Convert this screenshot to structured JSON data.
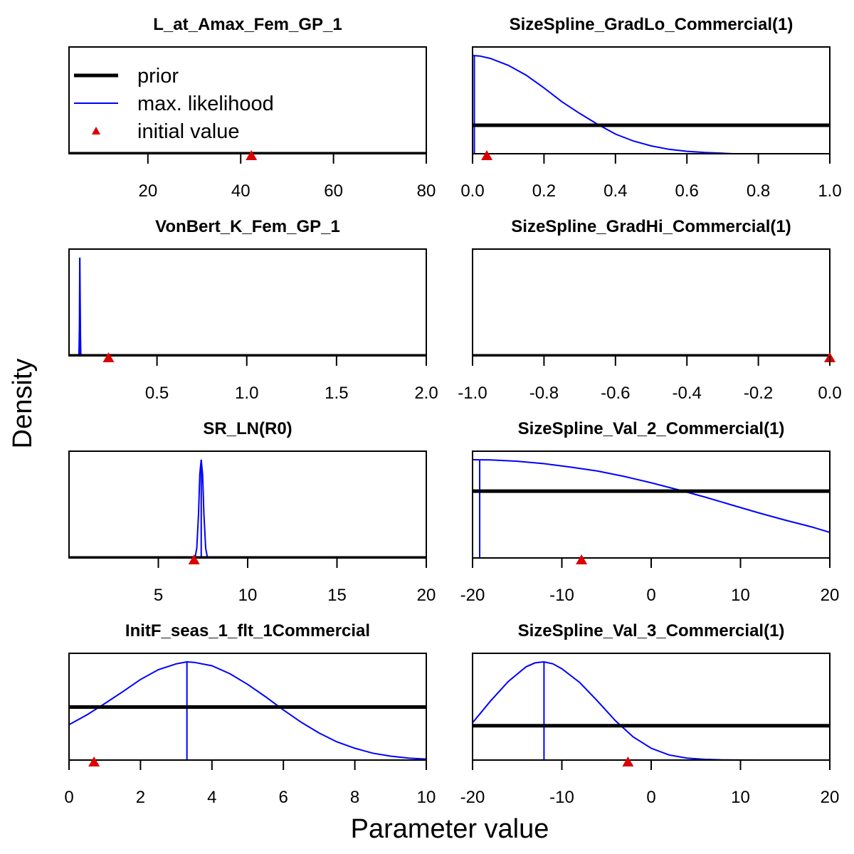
{
  "figure": {
    "xlabel": "Parameter value",
    "ylabel": "Density",
    "colors": {
      "prior": "#000000",
      "mle": "#0000ff",
      "initial": "#dd0000"
    }
  },
  "legend": {
    "placement": "top-left of first panel",
    "items": [
      {
        "label": "prior",
        "symbol": "thick-line"
      },
      {
        "label": "max. likelihood",
        "symbol": "thin-line"
      },
      {
        "label": "initial value",
        "symbol": "triangle"
      }
    ]
  },
  "chart_data": [
    {
      "type": "line",
      "title": "L_at_Amax_Fem_GP_1",
      "xlim": [
        3,
        80
      ],
      "ylim": [
        0,
        1
      ],
      "ticks": [
        "20",
        "40",
        "60",
        "80"
      ],
      "tick_values": [
        20,
        40,
        60,
        80
      ],
      "prior": {
        "x": [
          3,
          80
        ],
        "y": [
          0,
          0
        ]
      },
      "mle": {
        "x": [],
        "y": []
      },
      "mle_estimate": null,
      "initial_value": 42.3
    },
    {
      "type": "line",
      "title": "SizeSpline_GradLo_Commercial(1)",
      "xlim": [
        0,
        1
      ],
      "ylim": [
        0,
        1
      ],
      "ticks": [
        "0.0",
        "0.2",
        "0.4",
        "0.6",
        "0.8",
        "1.0"
      ],
      "tick_values": [
        0,
        0.2,
        0.4,
        0.6,
        0.8,
        1.0
      ],
      "prior": {
        "x": [
          0,
          1
        ],
        "y": [
          0.29,
          0.29
        ]
      },
      "mle": {
        "x": [
          0.0,
          0.02,
          0.05,
          0.1,
          0.15,
          0.2,
          0.25,
          0.3,
          0.35,
          0.4,
          0.45,
          0.5,
          0.55,
          0.6,
          0.65,
          0.7,
          0.73
        ],
        "y": [
          1.0,
          0.995,
          0.97,
          0.9,
          0.8,
          0.67,
          0.53,
          0.41,
          0.3,
          0.2,
          0.13,
          0.08,
          0.045,
          0.025,
          0.012,
          0.005,
          0.0
        ]
      },
      "mle_estimate": 0.005,
      "initial_value": 0.04
    },
    {
      "type": "line",
      "title": "VonBert_K_Fem_GP_1",
      "xlim": [
        0.01,
        2.0
      ],
      "ylim": [
        0,
        1
      ],
      "ticks": [
        "0.5",
        "1.0",
        "1.5",
        "2.0"
      ],
      "tick_values": [
        0.5,
        1.0,
        1.5,
        2.0
      ],
      "prior": {
        "x": [
          0.01,
          2.0
        ],
        "y": [
          0,
          0
        ]
      },
      "mle": {
        "x": [
          0.065,
          0.068,
          0.07,
          0.072,
          0.074,
          0.076
        ],
        "y": [
          0.0,
          0.3,
          1.0,
          0.6,
          0.2,
          0.0
        ]
      },
      "mle_estimate": 0.07,
      "initial_value": 0.23
    },
    {
      "type": "line",
      "title": "SizeSpline_GradHi_Commercial(1)",
      "xlim": [
        -1,
        0
      ],
      "ylim": [
        0,
        1
      ],
      "ticks": [
        "-1.0",
        "-0.8",
        "-0.6",
        "-0.4",
        "-0.2",
        "0.0"
      ],
      "tick_values": [
        -1.0,
        -0.8,
        -0.6,
        -0.4,
        -0.2,
        0.0
      ],
      "prior": {
        "x": [
          -1,
          0
        ],
        "y": [
          0,
          0
        ]
      },
      "mle": {
        "x": [],
        "y": []
      },
      "mle_estimate": null,
      "initial_value": 0.0
    },
    {
      "type": "line",
      "title": "SR_LN(R0)",
      "xlim": [
        0,
        20
      ],
      "ylim": [
        0,
        1
      ],
      "ticks": [
        "5",
        "10",
        "15",
        "20"
      ],
      "tick_values": [
        5,
        10,
        15,
        20
      ],
      "prior": {
        "x": [
          0,
          20
        ],
        "y": [
          0,
          0
        ]
      },
      "mle": {
        "x": [
          7.05,
          7.15,
          7.25,
          7.32,
          7.4,
          7.48,
          7.55,
          7.65,
          7.75
        ],
        "y": [
          0.0,
          0.1,
          0.45,
          0.85,
          1.0,
          0.85,
          0.45,
          0.1,
          0.0
        ]
      },
      "mle_estimate": 7.4,
      "initial_value": 7.0
    },
    {
      "type": "line",
      "title": "SizeSpline_Val_2_Commercial(1)",
      "xlim": [
        -20,
        20
      ],
      "ylim": [
        0,
        1
      ],
      "ticks": [
        "-20",
        "-10",
        "0",
        "10",
        "20"
      ],
      "tick_values": [
        -20,
        -10,
        0,
        10,
        20
      ],
      "prior": {
        "x": [
          -20,
          20
        ],
        "y": [
          0.68,
          0.68
        ]
      },
      "mle": {
        "x": [
          -20,
          -18,
          -15,
          -12,
          -9,
          -6,
          -3,
          0,
          3,
          6,
          9,
          12,
          15,
          18,
          20
        ],
        "y": [
          1.0,
          0.998,
          0.985,
          0.96,
          0.925,
          0.885,
          0.83,
          0.765,
          0.695,
          0.62,
          0.54,
          0.46,
          0.385,
          0.315,
          0.26
        ]
      },
      "mle_estimate": -19.2,
      "initial_value": -7.8
    },
    {
      "type": "line",
      "title": "InitF_seas_1_flt_1Commercial",
      "xlim": [
        0,
        10
      ],
      "ylim": [
        0,
        1
      ],
      "ticks": [
        "0",
        "2",
        "4",
        "6",
        "8",
        "10"
      ],
      "tick_values": [
        0,
        2,
        4,
        6,
        8,
        10
      ],
      "prior": {
        "x": [
          0,
          10
        ],
        "y": [
          0.54,
          0.54
        ]
      },
      "mle": {
        "x": [
          0,
          0.5,
          1,
          1.5,
          2,
          2.5,
          3,
          3.3,
          3.5,
          4,
          4.5,
          5,
          5.5,
          6,
          6.5,
          7,
          7.5,
          8,
          8.5,
          9,
          9.5,
          10
        ],
        "y": [
          0.36,
          0.46,
          0.575,
          0.695,
          0.82,
          0.92,
          0.98,
          1.0,
          0.995,
          0.96,
          0.88,
          0.77,
          0.645,
          0.51,
          0.385,
          0.275,
          0.185,
          0.12,
          0.07,
          0.04,
          0.02,
          0.01
        ]
      },
      "mle_estimate": 3.3,
      "initial_value": 0.7
    },
    {
      "type": "line",
      "title": "SizeSpline_Val_3_Commercial(1)",
      "xlim": [
        -20,
        20
      ],
      "ylim": [
        0,
        1
      ],
      "ticks": [
        "-20",
        "-10",
        "0",
        "10",
        "20"
      ],
      "tick_values": [
        -20,
        -10,
        0,
        10,
        20
      ],
      "prior": {
        "x": [
          -20,
          20
        ],
        "y": [
          0.35,
          0.35
        ]
      },
      "mle": {
        "x": [
          -20,
          -18,
          -16,
          -14,
          -13,
          -12,
          -11,
          -10,
          -8,
          -6,
          -4,
          -2,
          0,
          2,
          4,
          6,
          8,
          10,
          12
        ],
        "y": [
          0.38,
          0.6,
          0.8,
          0.95,
          0.99,
          1.0,
          0.98,
          0.93,
          0.79,
          0.6,
          0.4,
          0.235,
          0.12,
          0.052,
          0.02,
          0.007,
          0.002,
          0.001,
          0.0
        ]
      },
      "mle_estimate": -12.0,
      "initial_value": -2.6
    }
  ]
}
